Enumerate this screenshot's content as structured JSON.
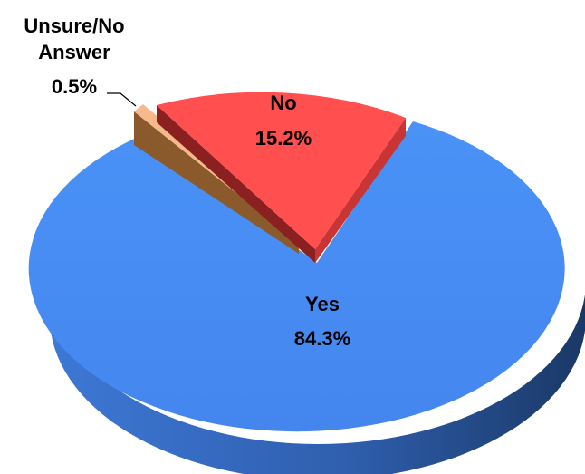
{
  "chart_data": {
    "type": "pie",
    "title": "",
    "slices": [
      {
        "label": "Yes",
        "value": 84.3,
        "value_label": "84.3%",
        "color": "#4a8ff5"
      },
      {
        "label": "No",
        "value": 15.2,
        "value_label": "15.2%",
        "color": "#ff4f4f"
      },
      {
        "label_lines": [
          "Unsure/No",
          "Answer"
        ],
        "value": 0.5,
        "value_label": "0.5%",
        "color": "#f7b98a"
      }
    ]
  }
}
